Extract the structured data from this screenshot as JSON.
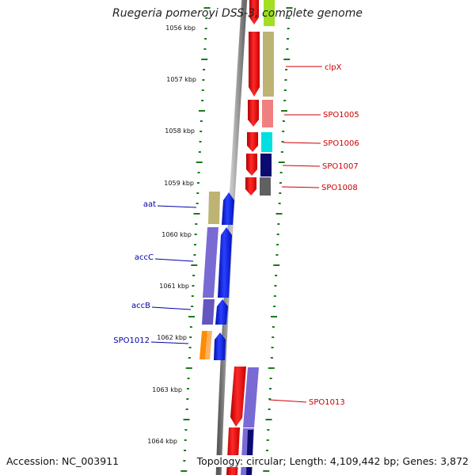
{
  "title": "Ruegeria pomeroyi DSS-3, complete genome",
  "footer": {
    "accession": "Accession: NC_003911",
    "summary": "Topology: circular; Length: 4,109,442 bp; Genes: 3,872"
  },
  "axis": {
    "ticks": [
      "1056 kbp",
      "1057 kbp",
      "1058 kbp",
      "1059 kbp",
      "1060 kbp",
      "1061 kbp",
      "1062 kbp",
      "1063 kbp",
      "1064 kbp"
    ]
  },
  "colors": {
    "background": "#ffffff",
    "tick": "#1a7a1a",
    "backbone": "#8c8c8c",
    "strand_forward_arrow": "#e8000b",
    "strand_reverse_arrow": "#0018e8",
    "label_forward": "#cc0000",
    "label_reverse": "#0000aa",
    "gene_khaki": "#bdb373",
    "gene_pink": "#f08080",
    "gene_cyan": "#00e0e0",
    "gene_navy": "#0a0a70",
    "gene_gray": "#606060",
    "gene_purple": "#7a6ad4",
    "gene_orange": "#ff8c00",
    "gene_lime": "#a0e020"
  },
  "genes": [
    {
      "label": "clpX",
      "strand": "forward"
    },
    {
      "label": "SPO1005",
      "strand": "forward"
    },
    {
      "label": "SPO1006",
      "strand": "forward"
    },
    {
      "label": "SPO1007",
      "strand": "forward"
    },
    {
      "label": "SPO1008",
      "strand": "forward"
    },
    {
      "label": "aat",
      "strand": "reverse"
    },
    {
      "label": "accC",
      "strand": "reverse"
    },
    {
      "label": "accB",
      "strand": "reverse"
    },
    {
      "label": "SPO1012",
      "strand": "reverse"
    },
    {
      "label": "SPO1013",
      "strand": "forward"
    }
  ]
}
